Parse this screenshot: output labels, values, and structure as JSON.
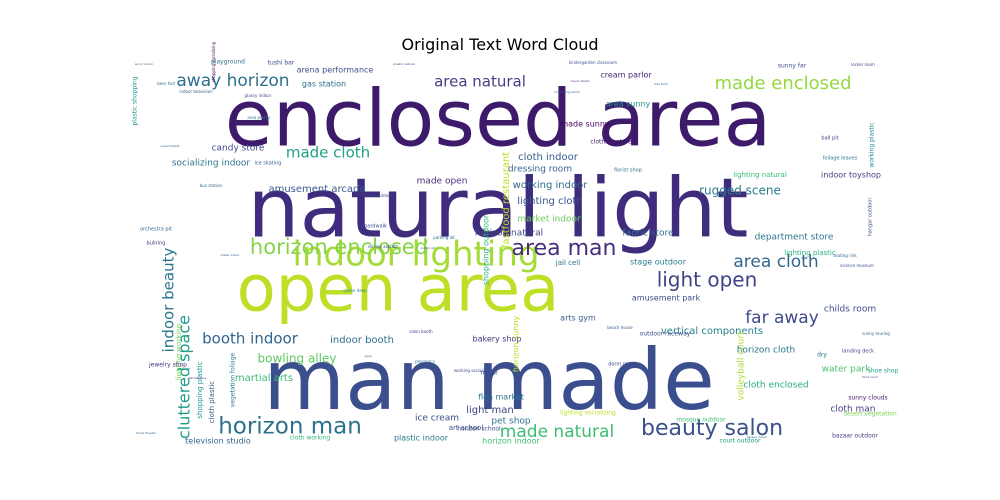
{
  "chart_data": {
    "type": "wordcloud",
    "title": "Original Text Word Cloud",
    "words": [
      {
        "text": "enclosed area",
        "weight": 100,
        "color": "#3e1a6b"
      },
      {
        "text": "natural light",
        "weight": 97,
        "color": "#3f2c7d"
      },
      {
        "text": "man made",
        "weight": 96,
        "color": "#3b4e8d"
      },
      {
        "text": "open area",
        "weight": 72,
        "color": "#bddf26"
      },
      {
        "text": "indoor lighting",
        "weight": 40,
        "color": "#a5db36"
      },
      {
        "text": "horizon enclosed",
        "weight": 30,
        "color": "#86d549"
      },
      {
        "text": "horizon man",
        "weight": 28,
        "color": "#2c728e"
      },
      {
        "text": "beauty salon",
        "weight": 27,
        "color": "#3b518b"
      },
      {
        "text": "area man",
        "weight": 24,
        "color": "#472f7d"
      },
      {
        "text": "light open",
        "weight": 22,
        "color": "#404387"
      },
      {
        "text": "made enclosed",
        "weight": 21,
        "color": "#95d840"
      },
      {
        "text": "area cloth",
        "weight": 20,
        "color": "#31688e"
      },
      {
        "text": "far away",
        "weight": 19,
        "color": "#3f4a8a"
      },
      {
        "text": "away horizon",
        "weight": 19,
        "color": "#2e6f8e"
      },
      {
        "text": "made natural",
        "weight": 18,
        "color": "#3dbc74"
      },
      {
        "text": "area natural",
        "weight": 17,
        "color": "#433e85"
      },
      {
        "text": "made cloth",
        "weight": 16,
        "color": "#1fa187"
      },
      {
        "text": "booth indoor",
        "weight": 16,
        "color": "#33638d"
      },
      {
        "text": "indoor beauty",
        "weight": 16,
        "color": "#2a788e"
      },
      {
        "text": "cluttered space",
        "weight": 16,
        "color": "#1e9c89"
      },
      {
        "text": "bowling alley",
        "weight": 12,
        "color": "#5ec962"
      },
      {
        "text": "rugged scene",
        "weight": 12,
        "color": "#297b8e"
      },
      {
        "text": "martial arts",
        "weight": 11,
        "color": "#3aba76"
      },
      {
        "text": "indoor booth",
        "weight": 11,
        "color": "#2d718e"
      },
      {
        "text": "light man",
        "weight": 10,
        "color": "#414487"
      },
      {
        "text": "lighting cloth",
        "weight": 10,
        "color": "#3b528b"
      },
      {
        "text": "cloth indoor",
        "weight": 10,
        "color": "#365c8d"
      },
      {
        "text": "working indoor",
        "weight": 10,
        "color": "#2f6c8e"
      },
      {
        "text": "vertical components",
        "weight": 10,
        "color": "#26828e"
      },
      {
        "text": "amusement arcade",
        "weight": 10,
        "color": "#38598c"
      },
      {
        "text": "socializing indoor",
        "weight": 9,
        "color": "#2c738e"
      },
      {
        "text": "candy store",
        "weight": 9,
        "color": "#3f4788"
      },
      {
        "text": "dressing room",
        "weight": 9,
        "color": "#355f8d"
      },
      {
        "text": "made open",
        "weight": 9,
        "color": "#472d7b"
      },
      {
        "text": "market indoor",
        "weight": 9,
        "color": "#6ccd5a"
      },
      {
        "text": "horizon natural",
        "weight": 9,
        "color": "#3f4889"
      },
      {
        "text": "fabric store",
        "weight": 9,
        "color": "#2c718e"
      },
      {
        "text": "department store",
        "weight": 9,
        "color": "#2a768e"
      },
      {
        "text": "childs room",
        "weight": 9,
        "color": "#3e4a89"
      },
      {
        "text": "horizon cloth",
        "weight": 9,
        "color": "#2b748e"
      },
      {
        "text": "water park",
        "weight": 9,
        "color": "#4ac16d"
      },
      {
        "text": "cloth enclosed",
        "weight": 9,
        "color": "#22a884"
      },
      {
        "text": "cloth man",
        "weight": 9,
        "color": "#433d84"
      },
      {
        "text": "ice cream",
        "weight": 9,
        "color": "#3d4d8a"
      },
      {
        "text": "pet shop",
        "weight": 9,
        "color": "#2d708e"
      },
      {
        "text": "television studio",
        "weight": 8,
        "color": "#32658e"
      },
      {
        "text": "plastic indoor",
        "weight": 8,
        "color": "#29798e"
      },
      {
        "text": "horizon indoor",
        "weight": 8,
        "color": "#3fbc73"
      },
      {
        "text": "cream parlor",
        "weight": 8,
        "color": "#481f70"
      },
      {
        "text": "area sunny",
        "weight": 8,
        "color": "#21908d"
      },
      {
        "text": "made sunny",
        "weight": 8,
        "color": "#450559"
      },
      {
        "text": "arena performance",
        "weight": 8,
        "color": "#3c4f8a"
      },
      {
        "text": "gas station",
        "weight": 8,
        "color": "#2e6e8e"
      },
      {
        "text": "indoor toyshop",
        "weight": 8,
        "color": "#453882"
      },
      {
        "text": "bakery shop",
        "weight": 8,
        "color": "#46337f"
      },
      {
        "text": "arts gym",
        "weight": 8,
        "color": "#365d8d"
      },
      {
        "text": "stage outdoor",
        "weight": 8,
        "color": "#287d8e"
      },
      {
        "text": "amusement park",
        "weight": 8,
        "color": "#3d4e8a"
      },
      {
        "text": "flea market",
        "weight": 8,
        "color": "#2b758e"
      },
      {
        "text": "lighting natural",
        "weight": 7,
        "color": "#3aba76"
      },
      {
        "text": "fastfood restaurant",
        "weight": 7,
        "color": "#bddf26"
      },
      {
        "text": "shopping outdoor",
        "weight": 7,
        "color": "#2fb47c"
      },
      {
        "text": "horizon sunny",
        "weight": 7,
        "color": "#bddf26"
      },
      {
        "text": "shopping plastic",
        "weight": 7,
        "color": "#1f958b"
      },
      {
        "text": "cloth plastic",
        "weight": 7,
        "color": "#355e8d"
      },
      {
        "text": "lighting working",
        "weight": 7,
        "color": "#6ece58"
      },
      {
        "text": "art school",
        "weight": 7,
        "color": "#3e4989"
      },
      {
        "text": "jail cell",
        "weight": 7,
        "color": "#2e6d8e"
      },
      {
        "text": "lighting plastic",
        "weight": 7,
        "color": "#2ab07f"
      },
      {
        "text": "clothing store",
        "weight": 6,
        "color": "#481668"
      },
      {
        "text": "volleyball court",
        "weight": 6,
        "color": "#addc30"
      },
      {
        "text": "outdoor raceway",
        "weight": 6,
        "color": "#3b528b"
      },
      {
        "text": "mosque outdoor",
        "weight": 6,
        "color": "#3dbc74"
      },
      {
        "text": "court outdoor",
        "weight": 6,
        "color": "#1fa187"
      },
      {
        "text": "metal",
        "weight": 6,
        "color": "#3e4c8a"
      },
      {
        "text": "dry",
        "weight": 6,
        "color": "#2c728e"
      },
      {
        "text": "shoe shop",
        "weight": 6,
        "color": "#1f9e89"
      },
      {
        "text": "sunny clouds",
        "weight": 6,
        "color": "#482173"
      },
      {
        "text": "desert vegetation",
        "weight": 6,
        "color": "#7ad151"
      },
      {
        "text": "bazaar outdoor",
        "weight": 6,
        "color": "#433e85"
      },
      {
        "text": "lighting socializing",
        "weight": 6,
        "color": "#bddf26"
      },
      {
        "text": "cloth working",
        "weight": 6,
        "color": "#35b779"
      },
      {
        "text": "horizon school",
        "weight": 6,
        "color": "#3c508b"
      },
      {
        "text": "jewelry shop",
        "weight": 6,
        "color": "#463480"
      },
      {
        "text": "vegetation foliage",
        "weight": 6,
        "color": "#287c8e"
      },
      {
        "text": "plastic shopping",
        "weight": 5,
        "color": "#1f948c"
      },
      {
        "text": "sunny far",
        "weight": 5,
        "color": "#3d4d8a"
      },
      {
        "text": "tushi bar",
        "weight": 5,
        "color": "#3e4989"
      },
      {
        "text": "playground",
        "weight": 5,
        "color": "#2d708e"
      },
      {
        "text": "working plastic",
        "weight": 5,
        "color": "#23888e"
      },
      {
        "text": "ball pit",
        "weight": 5,
        "color": "#453781"
      },
      {
        "text": "foliage leaves",
        "weight": 5,
        "color": "#2a788e"
      },
      {
        "text": "hangar outdoor",
        "weight": 5,
        "color": "#38598c"
      },
      {
        "text": "landing deck",
        "weight": 5,
        "color": "#3f4788"
      },
      {
        "text": "orchestra pit",
        "weight": 5,
        "color": "#31688e"
      },
      {
        "text": "bullring",
        "weight": 5,
        "color": "#46337f"
      },
      {
        "text": "ice skating",
        "weight": 5,
        "color": "#34618d"
      },
      {
        "text": "boardwalk",
        "weight": 5,
        "color": "#3e4a89"
      },
      {
        "text": "florist shop",
        "weight": 5,
        "color": "#2a768e"
      },
      {
        "text": "dorm room",
        "weight": 5,
        "color": "#433d84"
      },
      {
        "text": "locker room",
        "weight": 4,
        "color": "#404688"
      },
      {
        "text": "church outdoor",
        "weight": 4,
        "color": "#3b528b"
      },
      {
        "text": "parking lot",
        "weight": 4,
        "color": "#2c738e"
      },
      {
        "text": "beach house",
        "weight": 4,
        "color": "#365c8d"
      },
      {
        "text": "bus station",
        "weight": 4,
        "color": "#30698e"
      },
      {
        "text": "salon booth",
        "weight": 4,
        "color": "#3f4889"
      },
      {
        "text": "pharmacy",
        "weight": 4,
        "color": "#2d718e"
      },
      {
        "text": "ocean deep",
        "weight": 4,
        "color": "#26828e"
      },
      {
        "text": "driving asphalt",
        "weight": 4,
        "color": "#3c4f8a"
      },
      {
        "text": "skating rink",
        "weight": 4,
        "color": "#32648e"
      },
      {
        "text": "science museum",
        "weight": 4,
        "color": "#3e4c8a"
      },
      {
        "text": "sunny touring",
        "weight": 4,
        "color": "#2f6c8e"
      },
      {
        "text": "shopping socializing",
        "weight": 4,
        "color": "#440154"
      },
      {
        "text": "kindergarden classroom",
        "weight": 4,
        "color": "#3b528b"
      },
      {
        "text": "beer hall",
        "weight": 4,
        "color": "#2c728e"
      },
      {
        "text": "working socializing",
        "weight": 4,
        "color": "#3e4989"
      },
      {
        "text": "indoor television",
        "weight": 4,
        "color": "#365d8d"
      },
      {
        "text": "glassy indoor",
        "weight": 4,
        "color": "#3d4d8a"
      },
      {
        "text": "area plastic",
        "weight": 4,
        "color": "#2b758e"
      },
      {
        "text": "tree farm",
        "weight": 3,
        "color": "#31688e"
      },
      {
        "text": "music studio",
        "weight": 3,
        "color": "#472d7b"
      },
      {
        "text": "wood indoor",
        "weight": 3,
        "color": "#2e6f8e"
      },
      {
        "text": "competing indoor",
        "weight": 3,
        "color": "#3b528b"
      },
      {
        "text": "plastic natural",
        "weight": 3,
        "color": "#3e4a89"
      },
      {
        "text": "aged",
        "weight": 3,
        "color": "#2a788e"
      },
      {
        "text": "discotheque",
        "weight": 3,
        "color": "#443a83"
      },
      {
        "text": "metal indoor",
        "weight": 3,
        "color": "#39568c"
      },
      {
        "text": "supermarket",
        "weight": 3,
        "color": "#2d708e"
      },
      {
        "text": "indoor art",
        "weight": 3,
        "color": "#3f4788"
      },
      {
        "text": "home theater",
        "weight": 3,
        "color": "#32658e"
      },
      {
        "text": "garage indoor",
        "weight": 3,
        "color": "#2a768e"
      },
      {
        "text": "food court",
        "weight": 3,
        "color": "#404387"
      }
    ]
  }
}
